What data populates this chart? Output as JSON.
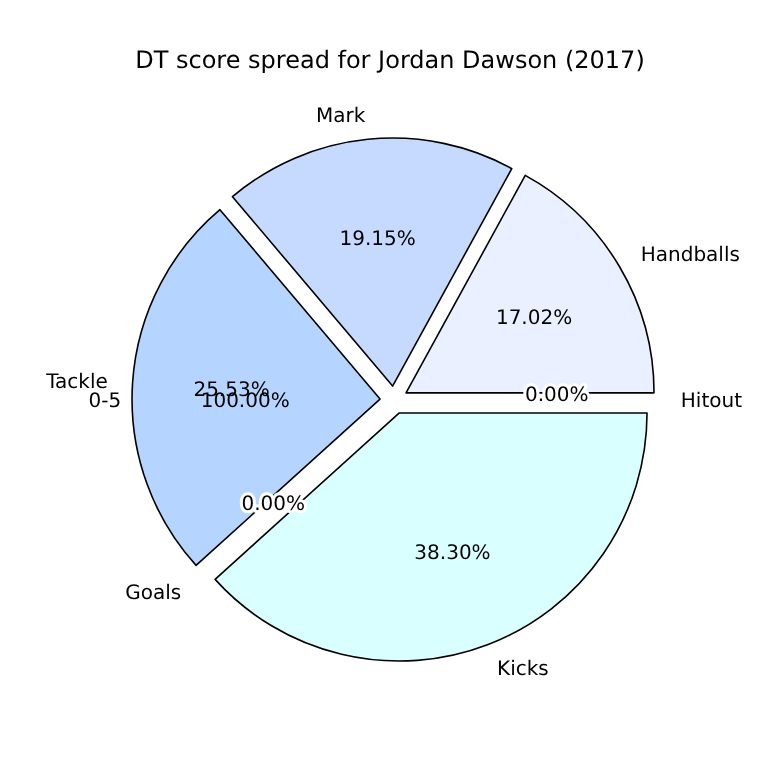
{
  "chart_data": {
    "type": "pie",
    "title": "DT score spread for Jordan Dawson (2017)",
    "categories": [
      "Hitout",
      "Handballs",
      "Mark",
      "Tackle",
      "Goals",
      "Kicks"
    ],
    "values": [
      0,
      17.02,
      19.15,
      25.53,
      0,
      38.3
    ],
    "value_labels": [
      "0.00%",
      "17.02%",
      "19.15%",
      "25.53%",
      "0.00%",
      "38.30%"
    ],
    "colors": [
      null,
      "#eaf0ff",
      "#c6d9ff",
      "#b5d4ff",
      null,
      "#d9ffff"
    ],
    "annotations": [
      "0-5",
      "100.00%"
    ]
  }
}
